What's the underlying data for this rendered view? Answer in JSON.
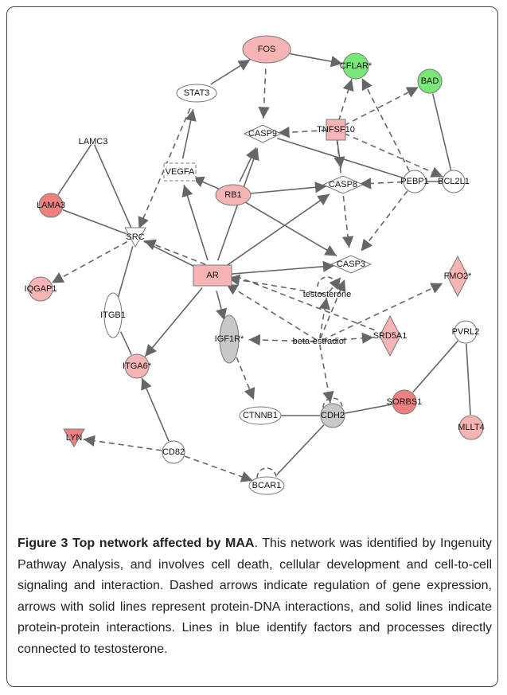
{
  "figure": {
    "nodes": [
      {
        "label": "FOS"
      },
      {
        "label": "CFLAR*"
      },
      {
        "label": "BAD"
      },
      {
        "label": "STAT3"
      },
      {
        "label": "TNFSF10"
      },
      {
        "label": "CASP9"
      },
      {
        "label": "LAMC3"
      },
      {
        "label": "BCL2L1"
      },
      {
        "label": "VEGFA"
      },
      {
        "label": "RB1"
      },
      {
        "label": "CASP8"
      },
      {
        "label": "PEBP1"
      },
      {
        "label": "LAMA3"
      },
      {
        "label": "SRC"
      },
      {
        "label": "AR"
      },
      {
        "label": "CASP3"
      },
      {
        "label": "FMO2*"
      },
      {
        "label": "IQGAP1"
      },
      {
        "label": "testosterone"
      },
      {
        "label": "ITGB1"
      },
      {
        "label": "IGF1R*"
      },
      {
        "label": "beta-estradiol"
      },
      {
        "label": "SRD5A1"
      },
      {
        "label": "PVRL2"
      },
      {
        "label": "ITGA6*"
      },
      {
        "label": "CTNNB1"
      },
      {
        "label": "CDH2"
      },
      {
        "label": "SORBS1"
      },
      {
        "label": "MLLT4"
      },
      {
        "label": "LYN"
      },
      {
        "label": "CD82"
      },
      {
        "label": "BCAR1"
      }
    ],
    "caption": {
      "title": "Figure 3 Top network affected by MAA",
      "text": ". This network was identified by Ingenuity Pathway Analysis, and involves cell death, cellular development and cell-to-cell signaling and interaction. Dashed arrows indicate regulation of gene expression, arrows with solid lines represent protein-DNA interactions, and solid lines indicate protein-protein interactions. Lines in blue identify factors and processes directly connected to testosterone."
    }
  }
}
